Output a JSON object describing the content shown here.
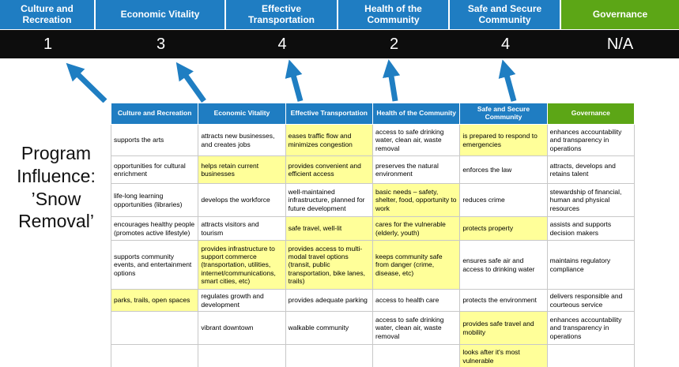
{
  "title": {
    "line1": "Program Influence:",
    "line2": "’Snow Removal’"
  },
  "colors": {
    "blue": "#1f7dc2",
    "green": "#5ca616",
    "band": "#0d0d0d",
    "hl": "#ffff99",
    "arrow": "#1f7ec2",
    "border": "#c8c8c8"
  },
  "summary": {
    "columns": [
      {
        "label": "Culture and Recreation",
        "score": "1"
      },
      {
        "label": "Economic Vitality",
        "score": "3"
      },
      {
        "label": "Effective Transportation",
        "score": "4"
      },
      {
        "label": "Health of the Community",
        "score": "2"
      },
      {
        "label": "Safe and Secure Community",
        "score": "4"
      },
      {
        "label": "Governance",
        "score": "N/A"
      }
    ]
  },
  "matrix": {
    "headers": [
      "Culture and Recreation",
      "Economic Vitality",
      "Effective Transportation",
      "Health of the Community",
      "Safe and Secure Community",
      "Governance"
    ],
    "rows": [
      [
        {
          "text": "supports the arts",
          "hl": false
        },
        {
          "text": "attracts new businesses, and creates jobs",
          "hl": false
        },
        {
          "text": "eases traffic flow and minimizes congestion",
          "hl": true
        },
        {
          "text": "access to safe drinking water, clean air, waste removal",
          "hl": false
        },
        {
          "text": "is prepared to respond to emergencies",
          "hl": true
        },
        {
          "text": "enhances accountability and transparency in operations",
          "hl": false
        }
      ],
      [
        {
          "text": "opportunities for cultural enrichment",
          "hl": false
        },
        {
          "text": "helps retain current businesses",
          "hl": true
        },
        {
          "text": "provides convenient and efficient access",
          "hl": true
        },
        {
          "text": "preserves the natural environment",
          "hl": false
        },
        {
          "text": "enforces the law",
          "hl": false
        },
        {
          "text": "attracts, develops and retains talent",
          "hl": false
        }
      ],
      [
        {
          "text": "life-long learning opportunities (libraries)",
          "hl": false
        },
        {
          "text": "develops the workforce",
          "hl": false
        },
        {
          "text": "well-maintained infrastructure, planned for future development",
          "hl": false
        },
        {
          "text": "basic needs – safety, shelter, food, opportunity to work",
          "hl": true
        },
        {
          "text": "reduces crime",
          "hl": false
        },
        {
          "text": "stewardship of financial, human and physical resources",
          "hl": false
        }
      ],
      [
        {
          "text": "encourages healthy people (promotes active lifestyle)",
          "hl": false
        },
        {
          "text": "attracts visitors and tourism",
          "hl": false
        },
        {
          "text": "safe travel, well-lit",
          "hl": true
        },
        {
          "text": "cares for the vulnerable (elderly, youth)",
          "hl": true
        },
        {
          "text": "protects property",
          "hl": true
        },
        {
          "text": "assists and supports decision makers",
          "hl": false
        }
      ],
      [
        {
          "text": "supports community events, and entertainment options",
          "hl": false
        },
        {
          "text": "provides infrastructure to support commerce (transportation, utilities, internet/communications, smart cities, etc)",
          "hl": true
        },
        {
          "text": "provides access to multi-modal travel options (transit, public transportation, bike lanes, trails)",
          "hl": true
        },
        {
          "text": "keeps community safe from danger (crime, disease, etc)",
          "hl": true
        },
        {
          "text": "ensures safe air and access to drinking water",
          "hl": false
        },
        {
          "text": "maintains regulatory compliance",
          "hl": false
        }
      ],
      [
        {
          "text": "parks, trails, open spaces",
          "hl": true
        },
        {
          "text": "regulates growth and development",
          "hl": false
        },
        {
          "text": "provides adequate parking",
          "hl": false
        },
        {
          "text": "access to health care",
          "hl": false
        },
        {
          "text": "protects the environment",
          "hl": false
        },
        {
          "text": "delivers responsible and courteous service",
          "hl": false
        }
      ],
      [
        {
          "text": "",
          "hl": false
        },
        {
          "text": "vibrant downtown",
          "hl": false
        },
        {
          "text": "walkable community",
          "hl": false
        },
        {
          "text": "access to safe drinking water, clean air, waste removal",
          "hl": false
        },
        {
          "text": "provides safe travel and mobility",
          "hl": true
        },
        {
          "text": "enhances accountability and transparency in operations",
          "hl": false
        }
      ],
      [
        {
          "text": "",
          "hl": false
        },
        {
          "text": "",
          "hl": false
        },
        {
          "text": "",
          "hl": false
        },
        {
          "text": "",
          "hl": false
        },
        {
          "text": "looks after it's most vulnerable",
          "hl": true
        },
        {
          "text": "",
          "hl": false
        }
      ]
    ]
  }
}
